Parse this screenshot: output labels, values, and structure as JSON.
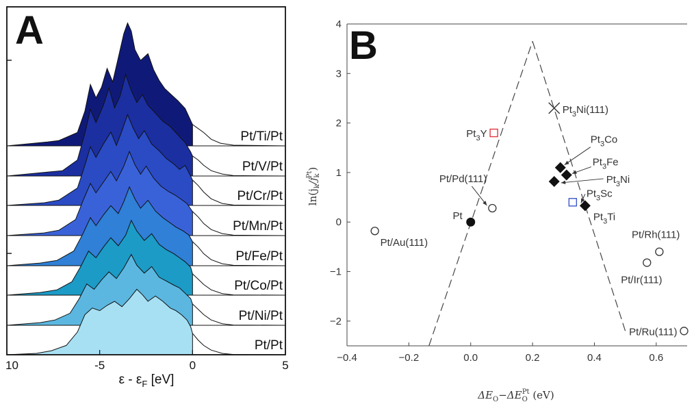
{
  "panels": {
    "a_letter": "A",
    "b_letter": "B"
  },
  "chart_data": [
    {
      "type": "area",
      "title": "",
      "xlabel": "ε - ε",
      "xlabel_sub": "F",
      "xlabel_unit": " [eV]",
      "x_ticks": [
        "10",
        "-5",
        "0",
        "5"
      ],
      "xlim": [
        -10,
        5
      ],
      "note": "stacked d-band density of states, occupied states filled",
      "series": [
        {
          "name": "Pt/Ti/Pt",
          "color": "#0f1a78",
          "points": [
            [
              -10,
              0
            ],
            [
              -7.8,
              0.3
            ],
            [
              -7.2,
              0.4
            ],
            [
              -6.2,
              1.0
            ],
            [
              -5.8,
              2.6
            ],
            [
              -5.5,
              4.6
            ],
            [
              -5.2,
              3.6
            ],
            [
              -4.9,
              4.4
            ],
            [
              -4.6,
              5.8
            ],
            [
              -4.3,
              4.8
            ],
            [
              -4.0,
              6.6
            ],
            [
              -3.7,
              8.4
            ],
            [
              -3.5,
              9.2
            ],
            [
              -3.3,
              8.6
            ],
            [
              -3.1,
              7.2
            ],
            [
              -2.8,
              6.4
            ],
            [
              -2.4,
              6.9
            ],
            [
              -2.1,
              5.7
            ],
            [
              -1.8,
              4.9
            ],
            [
              -1.5,
              4.3
            ],
            [
              -1.2,
              3.9
            ],
            [
              -0.8,
              3.4
            ],
            [
              -0.4,
              2.8
            ],
            [
              -0.1,
              1.9
            ],
            [
              0.0,
              1.6
            ],
            [
              0.3,
              1.3
            ],
            [
              0.6,
              1.0
            ],
            [
              1.0,
              0.5
            ],
            [
              1.5,
              0.2
            ],
            [
              2.2,
              0.05
            ],
            [
              5,
              0
            ]
          ]
        },
        {
          "name": "Pt/V/Pt",
          "color": "#1b2fa0",
          "points": [
            [
              -10,
              0
            ],
            [
              -7.8,
              0.3
            ],
            [
              -7.0,
              0.4
            ],
            [
              -6.2,
              1.2
            ],
            [
              -5.8,
              3.2
            ],
            [
              -5.5,
              5.0
            ],
            [
              -5.2,
              4.0
            ],
            [
              -4.8,
              5.3
            ],
            [
              -4.5,
              6.6
            ],
            [
              -4.2,
              5.1
            ],
            [
              -3.9,
              6.0
            ],
            [
              -3.6,
              7.6
            ],
            [
              -3.3,
              6.4
            ],
            [
              -3.0,
              5.5
            ],
            [
              -2.7,
              6.1
            ],
            [
              -2.4,
              5.3
            ],
            [
              -2.0,
              4.7
            ],
            [
              -1.6,
              4.1
            ],
            [
              -1.2,
              3.7
            ],
            [
              -0.8,
              3.1
            ],
            [
              -0.4,
              2.5
            ],
            [
              -0.1,
              1.8
            ],
            [
              0.0,
              1.5
            ],
            [
              0.3,
              1.2
            ],
            [
              0.6,
              0.8
            ],
            [
              1.0,
              0.4
            ],
            [
              1.6,
              0.15
            ],
            [
              2.2,
              0.03
            ],
            [
              5,
              0
            ]
          ]
        },
        {
          "name": "Pt/Cr/Pt",
          "color": "#2a4bc4",
          "points": [
            [
              -10,
              0
            ],
            [
              -8.0,
              0.2
            ],
            [
              -7.2,
              0.4
            ],
            [
              -6.2,
              1.3
            ],
            [
              -5.8,
              3.0
            ],
            [
              -5.5,
              4.4
            ],
            [
              -5.2,
              3.6
            ],
            [
              -4.8,
              4.6
            ],
            [
              -4.4,
              5.5
            ],
            [
              -4.1,
              4.5
            ],
            [
              -3.8,
              5.6
            ],
            [
              -3.5,
              6.8
            ],
            [
              -3.2,
              5.8
            ],
            [
              -2.9,
              5.0
            ],
            [
              -2.6,
              5.6
            ],
            [
              -2.2,
              4.6
            ],
            [
              -1.8,
              4.1
            ],
            [
              -1.4,
              3.5
            ],
            [
              -1.0,
              3.1
            ],
            [
              -0.7,
              2.7
            ],
            [
              -0.4,
              3.0
            ],
            [
              -0.1,
              2.2
            ],
            [
              0.0,
              1.9
            ],
            [
              0.3,
              1.5
            ],
            [
              0.6,
              1.0
            ],
            [
              1.0,
              0.5
            ],
            [
              1.6,
              0.15
            ],
            [
              2.2,
              0.03
            ],
            [
              5,
              0
            ]
          ]
        },
        {
          "name": "Pt/Mn/Pt",
          "color": "#3a62d8",
          "points": [
            [
              -10,
              0
            ],
            [
              -8.0,
              0.2
            ],
            [
              -7.2,
              0.4
            ],
            [
              -6.3,
              1.2
            ],
            [
              -5.9,
              2.6
            ],
            [
              -5.5,
              3.9
            ],
            [
              -5.2,
              3.2
            ],
            [
              -4.8,
              4.0
            ],
            [
              -4.4,
              4.8
            ],
            [
              -4.1,
              4.1
            ],
            [
              -3.7,
              5.2
            ],
            [
              -3.4,
              6.3
            ],
            [
              -3.1,
              5.3
            ],
            [
              -2.8,
              4.6
            ],
            [
              -2.5,
              5.2
            ],
            [
              -2.1,
              4.3
            ],
            [
              -1.7,
              3.7
            ],
            [
              -1.3,
              3.3
            ],
            [
              -0.9,
              3.0
            ],
            [
              -0.6,
              2.7
            ],
            [
              -0.3,
              2.4
            ],
            [
              -0.1,
              2.0
            ],
            [
              0.0,
              1.8
            ],
            [
              0.3,
              1.4
            ],
            [
              0.6,
              0.9
            ],
            [
              1.0,
              0.45
            ],
            [
              1.6,
              0.15
            ],
            [
              2.2,
              0.03
            ],
            [
              5,
              0
            ]
          ]
        },
        {
          "name": "Pt/Fe/Pt",
          "color": "#2f80d6",
          "points": [
            [
              -10,
              0
            ],
            [
              -8.2,
              0.2
            ],
            [
              -7.3,
              0.4
            ],
            [
              -6.4,
              1.1
            ],
            [
              -5.9,
              2.4
            ],
            [
              -5.5,
              3.6
            ],
            [
              -5.2,
              3.0
            ],
            [
              -4.8,
              3.8
            ],
            [
              -4.4,
              4.5
            ],
            [
              -4.0,
              3.9
            ],
            [
              -3.7,
              4.8
            ],
            [
              -3.4,
              5.9
            ],
            [
              -3.1,
              5.0
            ],
            [
              -2.8,
              4.3
            ],
            [
              -2.4,
              4.9
            ],
            [
              -2.0,
              4.1
            ],
            [
              -1.6,
              3.6
            ],
            [
              -1.2,
              3.2
            ],
            [
              -0.9,
              2.9
            ],
            [
              -0.5,
              2.6
            ],
            [
              -0.2,
              2.3
            ],
            [
              0.0,
              1.8
            ],
            [
              0.3,
              1.4
            ],
            [
              0.6,
              0.9
            ],
            [
              1.0,
              0.45
            ],
            [
              1.6,
              0.15
            ],
            [
              2.2,
              0.03
            ],
            [
              5,
              0
            ]
          ]
        },
        {
          "name": "Pt/Co/Pt",
          "color": "#1c9bc6",
          "points": [
            [
              -10,
              0
            ],
            [
              -8.2,
              0.2
            ],
            [
              -7.3,
              0.4
            ],
            [
              -6.5,
              1.0
            ],
            [
              -6.0,
              2.2
            ],
            [
              -5.6,
              3.3
            ],
            [
              -5.2,
              2.8
            ],
            [
              -4.8,
              3.6
            ],
            [
              -4.4,
              4.3
            ],
            [
              -4.0,
              3.7
            ],
            [
              -3.6,
              4.5
            ],
            [
              -3.3,
              5.6
            ],
            [
              -3.0,
              4.8
            ],
            [
              -2.6,
              4.1
            ],
            [
              -2.2,
              4.6
            ],
            [
              -1.8,
              3.8
            ],
            [
              -1.4,
              3.4
            ],
            [
              -1.0,
              3.1
            ],
            [
              -0.7,
              2.8
            ],
            [
              -0.4,
              2.5
            ],
            [
              -0.1,
              2.1
            ],
            [
              0.0,
              1.6
            ],
            [
              0.3,
              1.2
            ],
            [
              0.6,
              0.8
            ],
            [
              1.0,
              0.4
            ],
            [
              1.6,
              0.12
            ],
            [
              2.2,
              0.02
            ],
            [
              5,
              0
            ]
          ]
        },
        {
          "name": "Pt/Ni/Pt",
          "color": "#5bb7e0",
          "points": [
            [
              -10,
              0
            ],
            [
              -8.2,
              0.2
            ],
            [
              -7.4,
              0.4
            ],
            [
              -6.6,
              0.9
            ],
            [
              -6.1,
              2.0
            ],
            [
              -5.7,
              3.1
            ],
            [
              -5.3,
              2.7
            ],
            [
              -4.9,
              3.4
            ],
            [
              -4.5,
              4.0
            ],
            [
              -4.1,
              3.5
            ],
            [
              -3.7,
              4.3
            ],
            [
              -3.3,
              5.3
            ],
            [
              -3.0,
              4.5
            ],
            [
              -2.6,
              3.9
            ],
            [
              -2.2,
              4.4
            ],
            [
              -1.8,
              3.6
            ],
            [
              -1.4,
              3.3
            ],
            [
              -1.0,
              3.0
            ],
            [
              -0.7,
              2.8
            ],
            [
              -0.4,
              2.4
            ],
            [
              -0.1,
              2.0
            ],
            [
              0.0,
              1.6
            ],
            [
              0.3,
              1.2
            ],
            [
              0.6,
              0.8
            ],
            [
              1.0,
              0.4
            ],
            [
              1.6,
              0.12
            ],
            [
              2.2,
              0.02
            ],
            [
              5,
              0
            ]
          ]
        },
        {
          "name": "Pt/Pt",
          "color": "#a8e0f3",
          "points": [
            [
              -10,
              0
            ],
            [
              -8.4,
              0.1
            ],
            [
              -7.6,
              0.3
            ],
            [
              -6.8,
              0.7
            ],
            [
              -6.2,
              1.7
            ],
            [
              -5.8,
              3.0
            ],
            [
              -5.4,
              3.5
            ],
            [
              -5.0,
              3.3
            ],
            [
              -4.6,
              3.7
            ],
            [
              -4.2,
              4.0
            ],
            [
              -3.8,
              3.6
            ],
            [
              -3.4,
              4.2
            ],
            [
              -3.0,
              4.9
            ],
            [
              -2.7,
              4.5
            ],
            [
              -2.4,
              4.0
            ],
            [
              -2.0,
              4.4
            ],
            [
              -1.6,
              4.0
            ],
            [
              -1.2,
              3.5
            ],
            [
              -0.9,
              3.3
            ],
            [
              -0.6,
              3.0
            ],
            [
              -0.3,
              2.6
            ],
            [
              -0.1,
              2.1
            ],
            [
              0.0,
              1.6
            ],
            [
              0.3,
              1.1
            ],
            [
              0.6,
              0.7
            ],
            [
              1.0,
              0.35
            ],
            [
              1.6,
              0.1
            ],
            [
              2.2,
              0.02
            ],
            [
              5,
              0
            ]
          ]
        }
      ]
    },
    {
      "type": "scatter",
      "title": "",
      "xlabel": "ΔE",
      "xlabel_sub1": "O",
      "xlabel_mid": "−ΔE",
      "xlabel_sub2": "O",
      "xlabel_sup": "Pt",
      "xlabel_unit": " (eV)",
      "ylabel": "ln(j",
      "ylabel_sub1": "k",
      "ylabel_mid": "/j",
      "ylabel_sub2": "k",
      "ylabel_sup": "Pt",
      "ylabel_end": ")",
      "xlim": [
        -0.4,
        0.7
      ],
      "ylim": [
        -2.5,
        4
      ],
      "x_ticks": [
        "−0.4",
        "−0.2",
        "0.0",
        "0.2",
        "0.4",
        "0.6"
      ],
      "y_ticks": [
        "−2",
        "−1",
        "0",
        "1",
        "2",
        "3",
        "4"
      ],
      "x_tick_values": [
        -0.4,
        -0.2,
        0.0,
        0.2,
        0.4,
        0.6
      ],
      "y_tick_values": [
        -2,
        -1,
        0,
        1,
        2,
        3,
        4
      ],
      "volcano": {
        "apex": [
          0.2,
          3.65
        ],
        "left_end": [
          -0.135,
          -2.5
        ],
        "right_end": [
          0.5,
          -2.2
        ]
      },
      "points": [
        {
          "label": "Pt/Au(111)",
          "x": -0.31,
          "y": -0.18,
          "marker": "circle-open",
          "color": "#333333"
        },
        {
          "label": "Pt",
          "x": 0.0,
          "y": 0.0,
          "marker": "circle-filled",
          "color": "#111111"
        },
        {
          "label": "Pt/Pd(111)",
          "x": 0.07,
          "y": 0.28,
          "marker": "circle-open",
          "color": "#333333"
        },
        {
          "label": "Pt3Y",
          "x": 0.075,
          "y": 1.8,
          "marker": "square-open",
          "color": "#e0393e"
        },
        {
          "label": "Pt3Ni(111)",
          "x": 0.27,
          "y": 2.3,
          "marker": "cross",
          "color": "#333333"
        },
        {
          "label": "Pt3Co",
          "x": 0.29,
          "y": 1.1,
          "marker": "diamond-filled",
          "color": "#111111"
        },
        {
          "label": "Pt3Fe",
          "x": 0.31,
          "y": 0.95,
          "marker": "diamond-filled",
          "color": "#111111"
        },
        {
          "label": "Pt3Ni",
          "x": 0.27,
          "y": 0.82,
          "marker": "diamond-filled",
          "color": "#111111"
        },
        {
          "label": "Pt3Sc",
          "x": 0.33,
          "y": 0.4,
          "marker": "square-open",
          "color": "#3a56c8"
        },
        {
          "label": "Pt3Ti",
          "x": 0.37,
          "y": 0.33,
          "marker": "diamond-filled",
          "color": "#111111"
        },
        {
          "label": "Pt/Rh(111)",
          "x": 0.61,
          "y": -0.6,
          "marker": "circle-open",
          "color": "#333333"
        },
        {
          "label": "Pt/Ir(111)",
          "x": 0.57,
          "y": -0.82,
          "marker": "circle-open",
          "color": "#333333"
        },
        {
          "label": "Pt/Ru(111)",
          "x": 0.69,
          "y": -2.2,
          "marker": "circle-open",
          "color": "#333333"
        }
      ]
    }
  ]
}
